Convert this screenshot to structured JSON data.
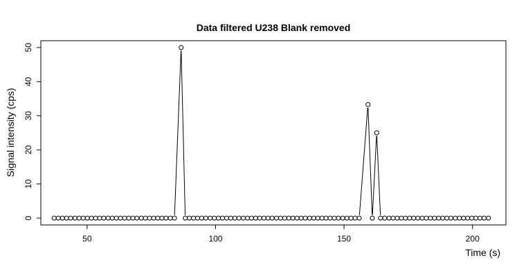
{
  "chart_data": {
    "type": "line",
    "title": "Data filtered U238 Blank removed",
    "xlabel": "Time (s)",
    "ylabel": "Signal intensity (cps)",
    "xlim": [
      32,
      213
    ],
    "ylim": [
      -2,
      52
    ],
    "x_ticks": [
      50,
      100,
      150,
      200
    ],
    "y_ticks": [
      0,
      10,
      20,
      30,
      40,
      50
    ],
    "grid": false,
    "legend": "none",
    "line_color": "#000000",
    "marker": "open-circle",
    "series": [
      {
        "x": [
          37.2,
          38.8,
          40.4,
          42.0,
          43.6,
          45.3,
          46.9,
          48.5,
          50.1,
          51.7,
          53.3,
          54.9,
          56.5,
          58.2,
          59.8,
          61.4,
          63.0,
          64.6,
          66.2,
          67.8,
          69.4,
          71.1,
          72.7,
          74.3,
          75.9,
          77.5,
          79.1,
          80.7,
          82.4,
          84.0,
          86.6,
          88.2,
          89.8,
          91.4,
          93.0,
          94.6,
          96.2,
          97.9,
          99.5,
          101.1,
          102.7,
          104.3,
          105.9,
          107.5,
          109.1,
          110.8,
          112.4,
          114.0,
          115.6,
          117.2,
          118.8,
          120.4,
          122.0,
          123.7,
          125.3,
          126.9,
          128.5,
          130.1,
          131.7,
          133.3,
          134.9,
          136.6,
          138.2,
          139.8,
          141.4,
          143.0,
          144.6,
          146.2,
          147.8,
          149.5,
          151.1,
          152.7,
          154.3,
          155.9,
          159.3,
          161.0,
          162.7,
          164.2,
          165.8,
          167.5,
          169.1,
          170.7,
          172.3,
          173.9,
          175.5,
          177.1,
          178.7,
          180.4,
          182.0,
          183.6,
          185.2,
          186.8,
          188.4,
          190.0,
          191.6,
          193.3,
          194.9,
          196.5,
          198.1,
          199.7,
          201.3,
          202.9,
          204.5,
          206.2
        ],
        "y": [
          0,
          0,
          0,
          0,
          0,
          0,
          0,
          0,
          0,
          0,
          0,
          0,
          0,
          0,
          0,
          0,
          0,
          0,
          0,
          0,
          0,
          0,
          0,
          0,
          0,
          0,
          0,
          0,
          0,
          0,
          50,
          0,
          0,
          0,
          0,
          0,
          0,
          0,
          0,
          0,
          0,
          0,
          0,
          0,
          0,
          0,
          0,
          0,
          0,
          0,
          0,
          0,
          0,
          0,
          0,
          0,
          0,
          0,
          0,
          0,
          0,
          0,
          0,
          0,
          0,
          0,
          0,
          0,
          0,
          0,
          0,
          0,
          0,
          0,
          33.3,
          0,
          25,
          0,
          0,
          0,
          0,
          0,
          0,
          0,
          0,
          0,
          0,
          0,
          0,
          0,
          0,
          0,
          0,
          0,
          0,
          0,
          0,
          0,
          0,
          0,
          0,
          0,
          0,
          0
        ]
      }
    ]
  }
}
